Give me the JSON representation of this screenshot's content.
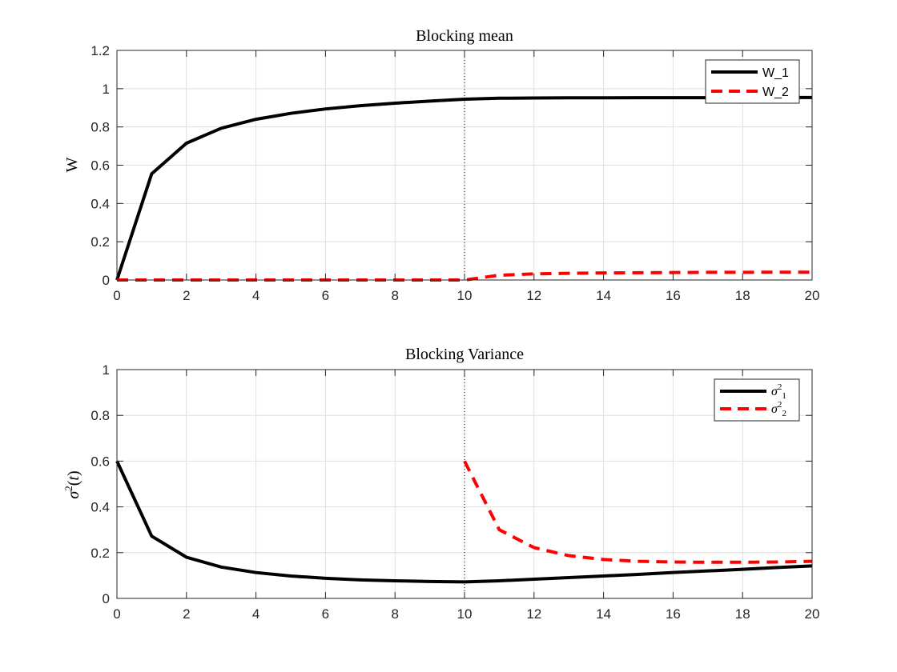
{
  "chart_data": [
    {
      "type": "line",
      "title": "Blocking mean",
      "xlabel": "",
      "ylabel": "W",
      "xlim": [
        0,
        20
      ],
      "ylim": [
        0,
        1.2
      ],
      "xticks": [
        "0",
        "2",
        "4",
        "6",
        "8",
        "10",
        "12",
        "14",
        "16",
        "18",
        "20"
      ],
      "yticks": [
        "0",
        "0.2",
        "0.4",
        "0.6",
        "0.8",
        "1",
        "1.2"
      ],
      "grid": true,
      "legend_position": "top-right",
      "vline": 10,
      "x": [
        0,
        1,
        2,
        3,
        4,
        5,
        6,
        7,
        8,
        9,
        10,
        11,
        12,
        13,
        14,
        15,
        16,
        17,
        18,
        19,
        20
      ],
      "series": [
        {
          "name": "W_1",
          "color": "#000000",
          "style": "solid",
          "values": [
            0,
            0.555,
            0.715,
            0.793,
            0.84,
            0.871,
            0.894,
            0.911,
            0.924,
            0.935,
            0.945,
            0.95,
            0.951,
            0.952,
            0.952,
            0.953,
            0.953,
            0.953,
            0.954,
            0.954,
            0.954
          ]
        },
        {
          "name": "W_2",
          "color": "#ff0000",
          "style": "dashed",
          "values": [
            0,
            0,
            0,
            0,
            0,
            0,
            0,
            0,
            0,
            0,
            0,
            0.025,
            0.032,
            0.035,
            0.037,
            0.038,
            0.039,
            0.04,
            0.04,
            0.041,
            0.041
          ]
        }
      ]
    },
    {
      "type": "line",
      "title": "Blocking Variance",
      "xlabel": "",
      "ylabel": "σ2(t)",
      "xlim": [
        0,
        20
      ],
      "ylim": [
        0,
        1
      ],
      "xticks": [
        "0",
        "2",
        "4",
        "6",
        "8",
        "10",
        "12",
        "14",
        "16",
        "18",
        "20"
      ],
      "yticks": [
        "0",
        "0.2",
        "0.4",
        "0.6",
        "0.8",
        "1"
      ],
      "grid": true,
      "legend_position": "top-right",
      "vline": 10,
      "series": [
        {
          "name": "σ21",
          "color": "#000000",
          "style": "solid",
          "x": [
            0,
            1,
            2,
            3,
            4,
            5,
            6,
            7,
            8,
            9,
            10,
            11,
            12,
            13,
            14,
            15,
            16,
            17,
            18,
            19,
            20
          ],
          "values": [
            0.6,
            0.272,
            0.18,
            0.137,
            0.113,
            0.098,
            0.088,
            0.081,
            0.077,
            0.074,
            0.072,
            0.077,
            0.084,
            0.091,
            0.098,
            0.105,
            0.113,
            0.12,
            0.127,
            0.135,
            0.142
          ]
        },
        {
          "name": "σ22",
          "color": "#ff0000",
          "style": "dashed",
          "x": [
            10,
            11,
            12,
            13,
            14,
            15,
            16,
            17,
            18,
            19,
            20
          ],
          "values": [
            0.6,
            0.3,
            0.222,
            0.187,
            0.17,
            0.162,
            0.159,
            0.158,
            0.158,
            0.159,
            0.162
          ]
        }
      ]
    }
  ]
}
